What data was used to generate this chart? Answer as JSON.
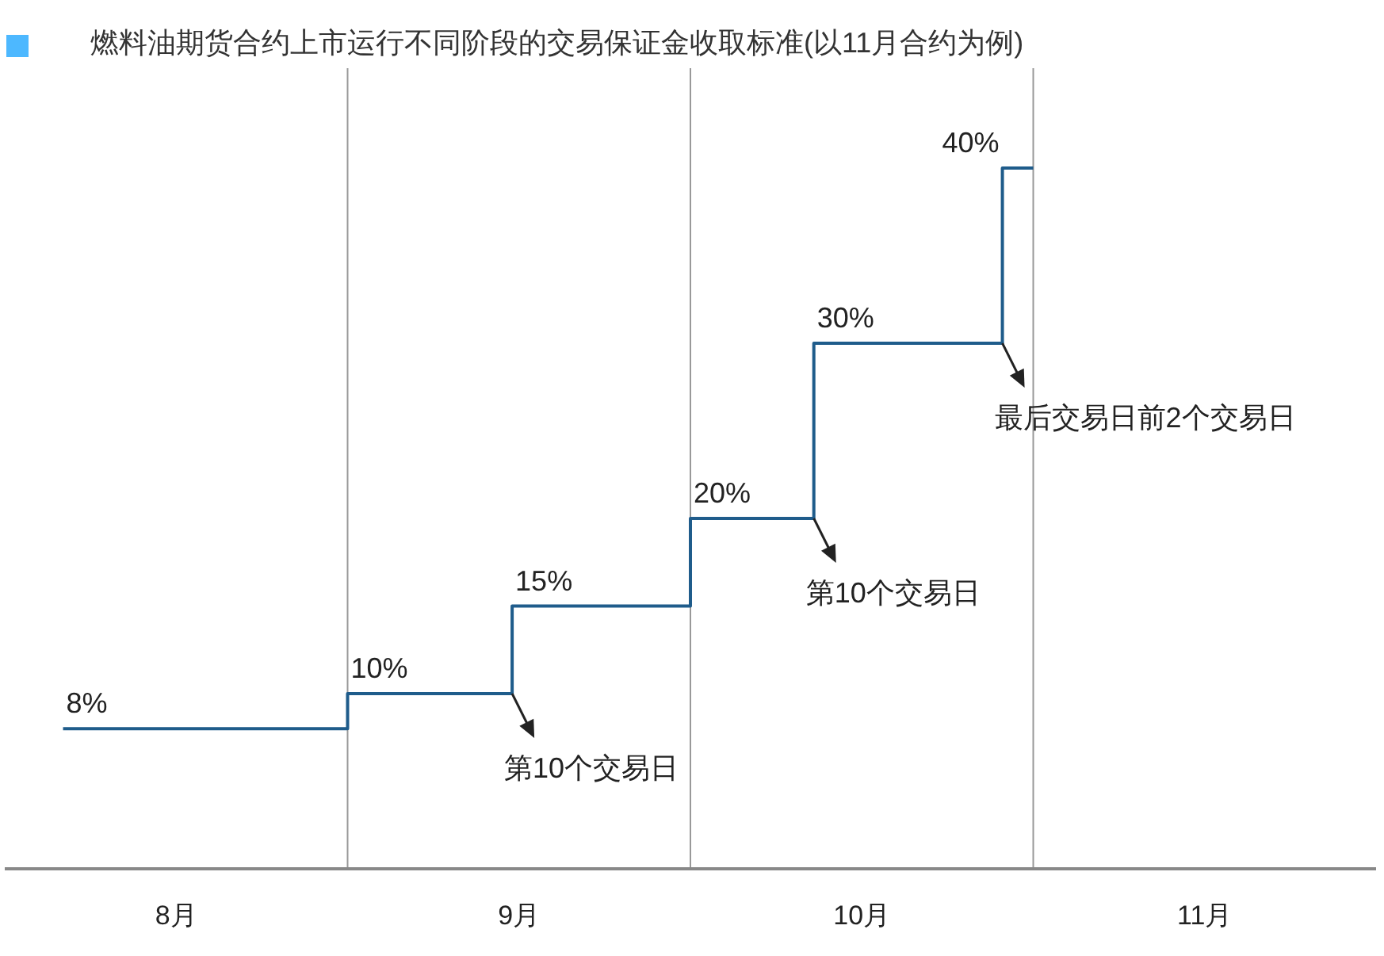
{
  "chart_data": {
    "type": "step",
    "title": "燃料油期货合约上市运行不同阶段的交易保证金收取标准(以11月合约为例)",
    "x": [
      7.67,
      8.5,
      8.98,
      9.5,
      9.86,
      10.41,
      10.5
    ],
    "series": [
      {
        "color": "#1f5c8b",
        "values": [
          8,
          10,
          15,
          20,
          30,
          40,
          40
        ],
        "value_labels": [
          "8%",
          "10%",
          "15%",
          "20%",
          "30%",
          "40%",
          null
        ]
      }
    ],
    "xlim": [
      7.5,
      11.5
    ],
    "xticks": [
      {
        "value": 8,
        "label": "8月"
      },
      {
        "value": 9,
        "label": "9月"
      },
      {
        "value": 10,
        "label": "10月"
      },
      {
        "value": 11,
        "label": "11月"
      }
    ],
    "ref_lines": [
      {
        "axis": "x",
        "value": 8.5,
        "color": "#999999"
      },
      {
        "axis": "x",
        "value": 9.5,
        "color": "#999999"
      },
      {
        "axis": "x",
        "value": 10.5,
        "color": "#999999"
      }
    ],
    "annotations": [
      {
        "text": "第10个交易日",
        "x": 8.98,
        "y": 10
      },
      {
        "text": "第10个交易日",
        "x": 9.86,
        "y": 20
      },
      {
        "text": "最后交易日前2个交易日",
        "x": 10.41,
        "y": 30
      }
    ]
  }
}
